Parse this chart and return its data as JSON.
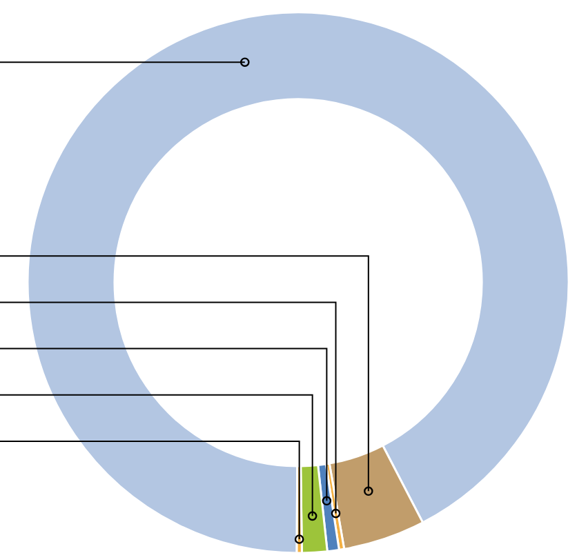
{
  "chart_data": {
    "type": "donut",
    "categories": [
      null,
      null,
      null,
      null,
      null,
      null
    ],
    "values": [
      92.3,
      4.9,
      0.3,
      0.7,
      1.5,
      0.3
    ],
    "colors": [
      "#b3c6e2",
      "#c19d6b",
      "#f4b042",
      "#4f81bd",
      "#9dc43a",
      "#f4b042"
    ]
  }
}
